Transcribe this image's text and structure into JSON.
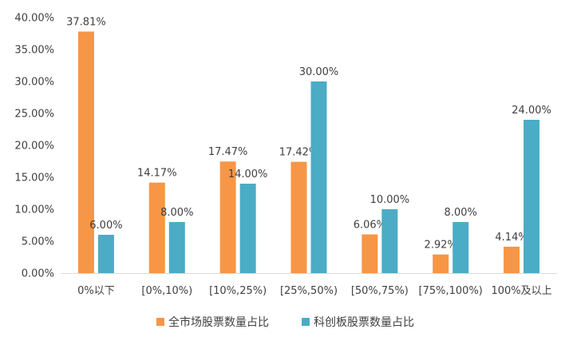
{
  "chart_data": {
    "type": "bar",
    "categories": [
      "0%以下",
      "[0%,10%)",
      "[10%,25%)",
      "[25%,50%)",
      "[50%,75%)",
      "[75%,100%)",
      "100%及以上"
    ],
    "series": [
      {
        "name": "全市场股票数量占比",
        "color": "#F79646",
        "values": [
          37.81,
          14.17,
          17.47,
          17.42,
          6.06,
          2.92,
          4.14
        ],
        "labels": [
          "37.81%",
          "14.17%",
          "17.47%",
          "17.42%",
          "6.06%",
          "2.92%",
          "4.14%"
        ]
      },
      {
        "name": "科创板股票数量占比",
        "color": "#4BACC6",
        "values": [
          6.0,
          8.0,
          14.0,
          30.0,
          10.0,
          8.0,
          24.0
        ],
        "labels": [
          "6.00%",
          "8.00%",
          "14.00%",
          "30.00%",
          "10.00%",
          "8.00%",
          "24.00%"
        ]
      }
    ],
    "ylim": [
      0,
      40
    ],
    "yticks": [
      0,
      5,
      10,
      15,
      20,
      25,
      30,
      35,
      40
    ],
    "ytick_labels": [
      "0.00%",
      "5.00%",
      "10.00%",
      "15.00%",
      "20.00%",
      "25.00%",
      "30.00%",
      "35.00%",
      "40.00%"
    ],
    "grid": false,
    "legend_position": "bottom"
  }
}
